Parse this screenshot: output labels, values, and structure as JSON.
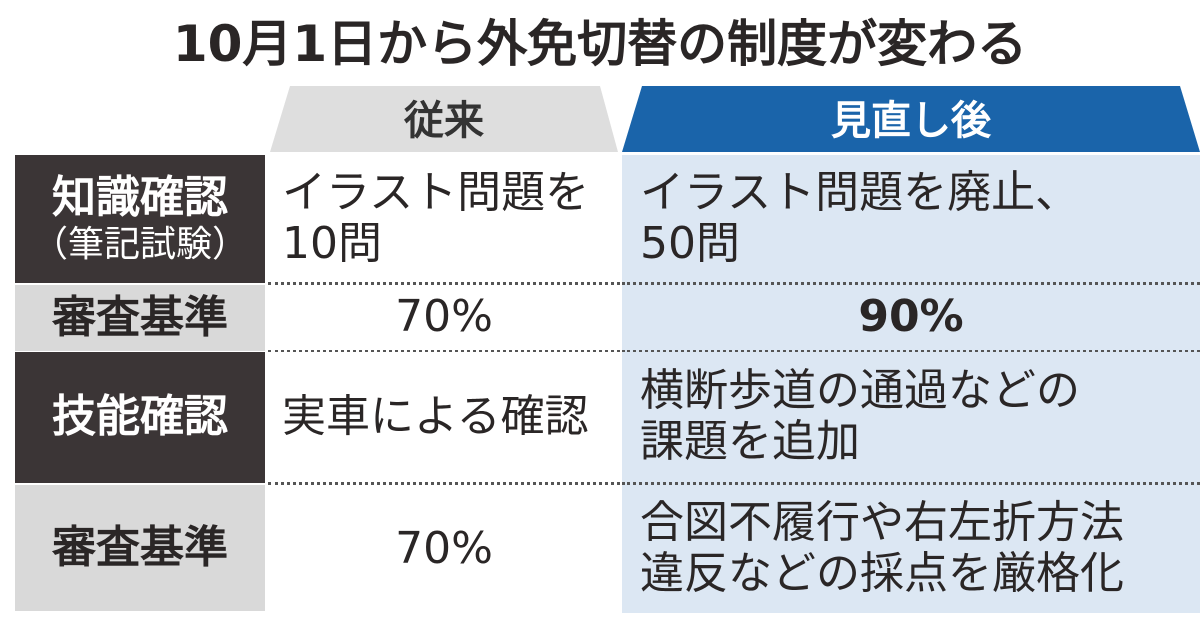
{
  "title": "10月1日から外免切替の制度が変わる",
  "columns": [
    "従来",
    "見直し後"
  ],
  "rows": [
    {
      "label": [
        "知識確認",
        "（筆記試験）"
      ],
      "cells": [
        [
          "イラスト問題を",
          "10問"
        ],
        [
          "イラスト問題を廃止、",
          "50問"
        ]
      ]
    },
    {
      "label": [
        "審査基準"
      ],
      "cells": [
        [
          "70%"
        ],
        [
          "90%"
        ]
      ]
    },
    {
      "label": [
        "技能確認"
      ],
      "cells": [
        [
          "実車による確認"
        ],
        [
          "横断歩道の通過などの",
          "課題を追加"
        ]
      ]
    },
    {
      "label": [
        "審査基準"
      ],
      "cells": [
        [
          "70%"
        ],
        [
          "合図不履行や右左折方法",
          "違反などの採点を厳格化"
        ]
      ]
    }
  ]
}
